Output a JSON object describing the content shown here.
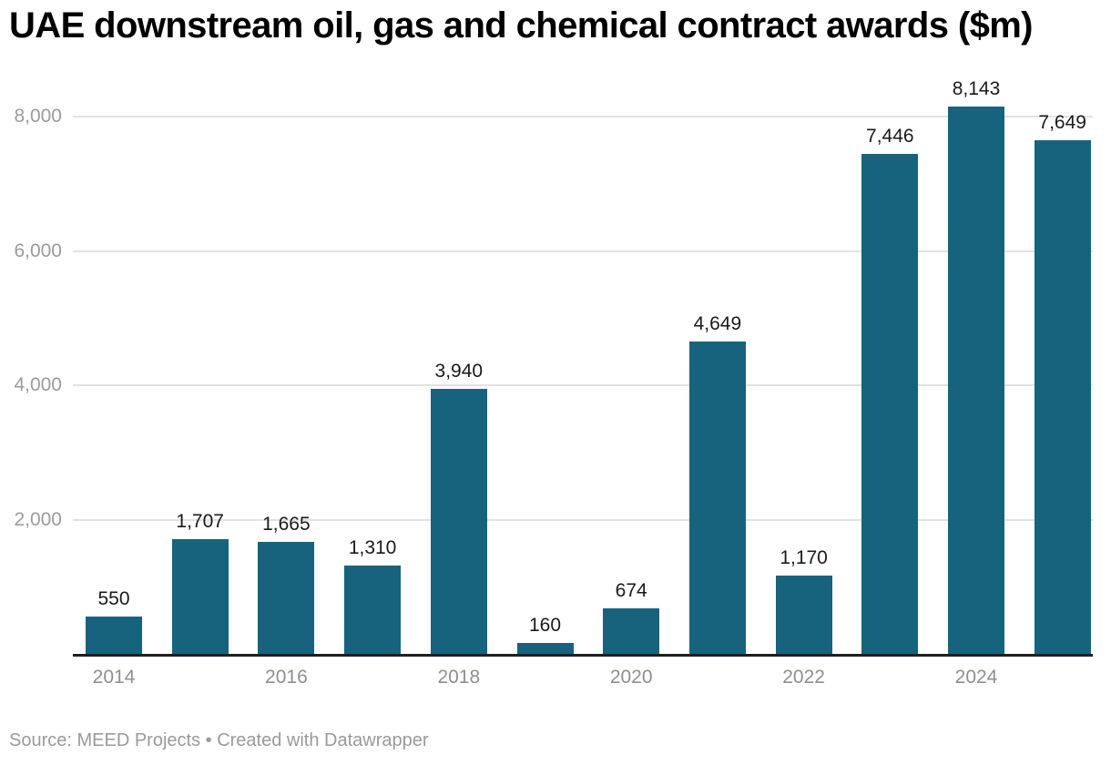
{
  "title": "UAE downstream oil, gas and chemical contract awards ($m)",
  "footer": {
    "source_label": "Source: ",
    "source_name": "MEED Projects",
    "separator": " • ",
    "credit": "Created with Datawrapper"
  },
  "colors": {
    "bar": "#17637E",
    "grid": "#e2e2e2",
    "axis_line": "#1f1f1f",
    "title_text": "#000000",
    "value_label_text": "#1a1a1a",
    "y_tick_text": "#9b9b9b",
    "x_tick_text": "#8f8f8f",
    "footer_text": "#9a9a9a",
    "background": "#ffffff"
  },
  "chart_data": {
    "type": "bar",
    "title": "UAE downstream oil, gas and chemical contract awards ($m)",
    "xlabel": "",
    "ylabel": "",
    "categories": [
      "2014",
      "2015",
      "2016",
      "2017",
      "2018",
      "2019",
      "2020",
      "2021",
      "2022",
      "2023",
      "2024",
      "2025"
    ],
    "values": [
      550,
      1707,
      1665,
      1310,
      3940,
      160,
      674,
      4649,
      1170,
      7446,
      8143,
      7649
    ],
    "value_labels": [
      "550",
      "1,707",
      "1,665",
      "1,310",
      "3,940",
      "160",
      "674",
      "4,649",
      "1,170",
      "7,446",
      "8,143",
      "7,649"
    ],
    "y_ticks": [
      {
        "value": 2000,
        "label": "2,000"
      },
      {
        "value": 4000,
        "label": "4,000"
      },
      {
        "value": 6000,
        "label": "6,000"
      },
      {
        "value": 8000,
        "label": "8,000"
      }
    ],
    "x_tick_labels": [
      "2014",
      "2016",
      "2018",
      "2020",
      "2022",
      "2024"
    ],
    "ylim": [
      0,
      8500
    ],
    "grid": "horizontal",
    "legend": "none",
    "bar_color": "#17637E"
  }
}
